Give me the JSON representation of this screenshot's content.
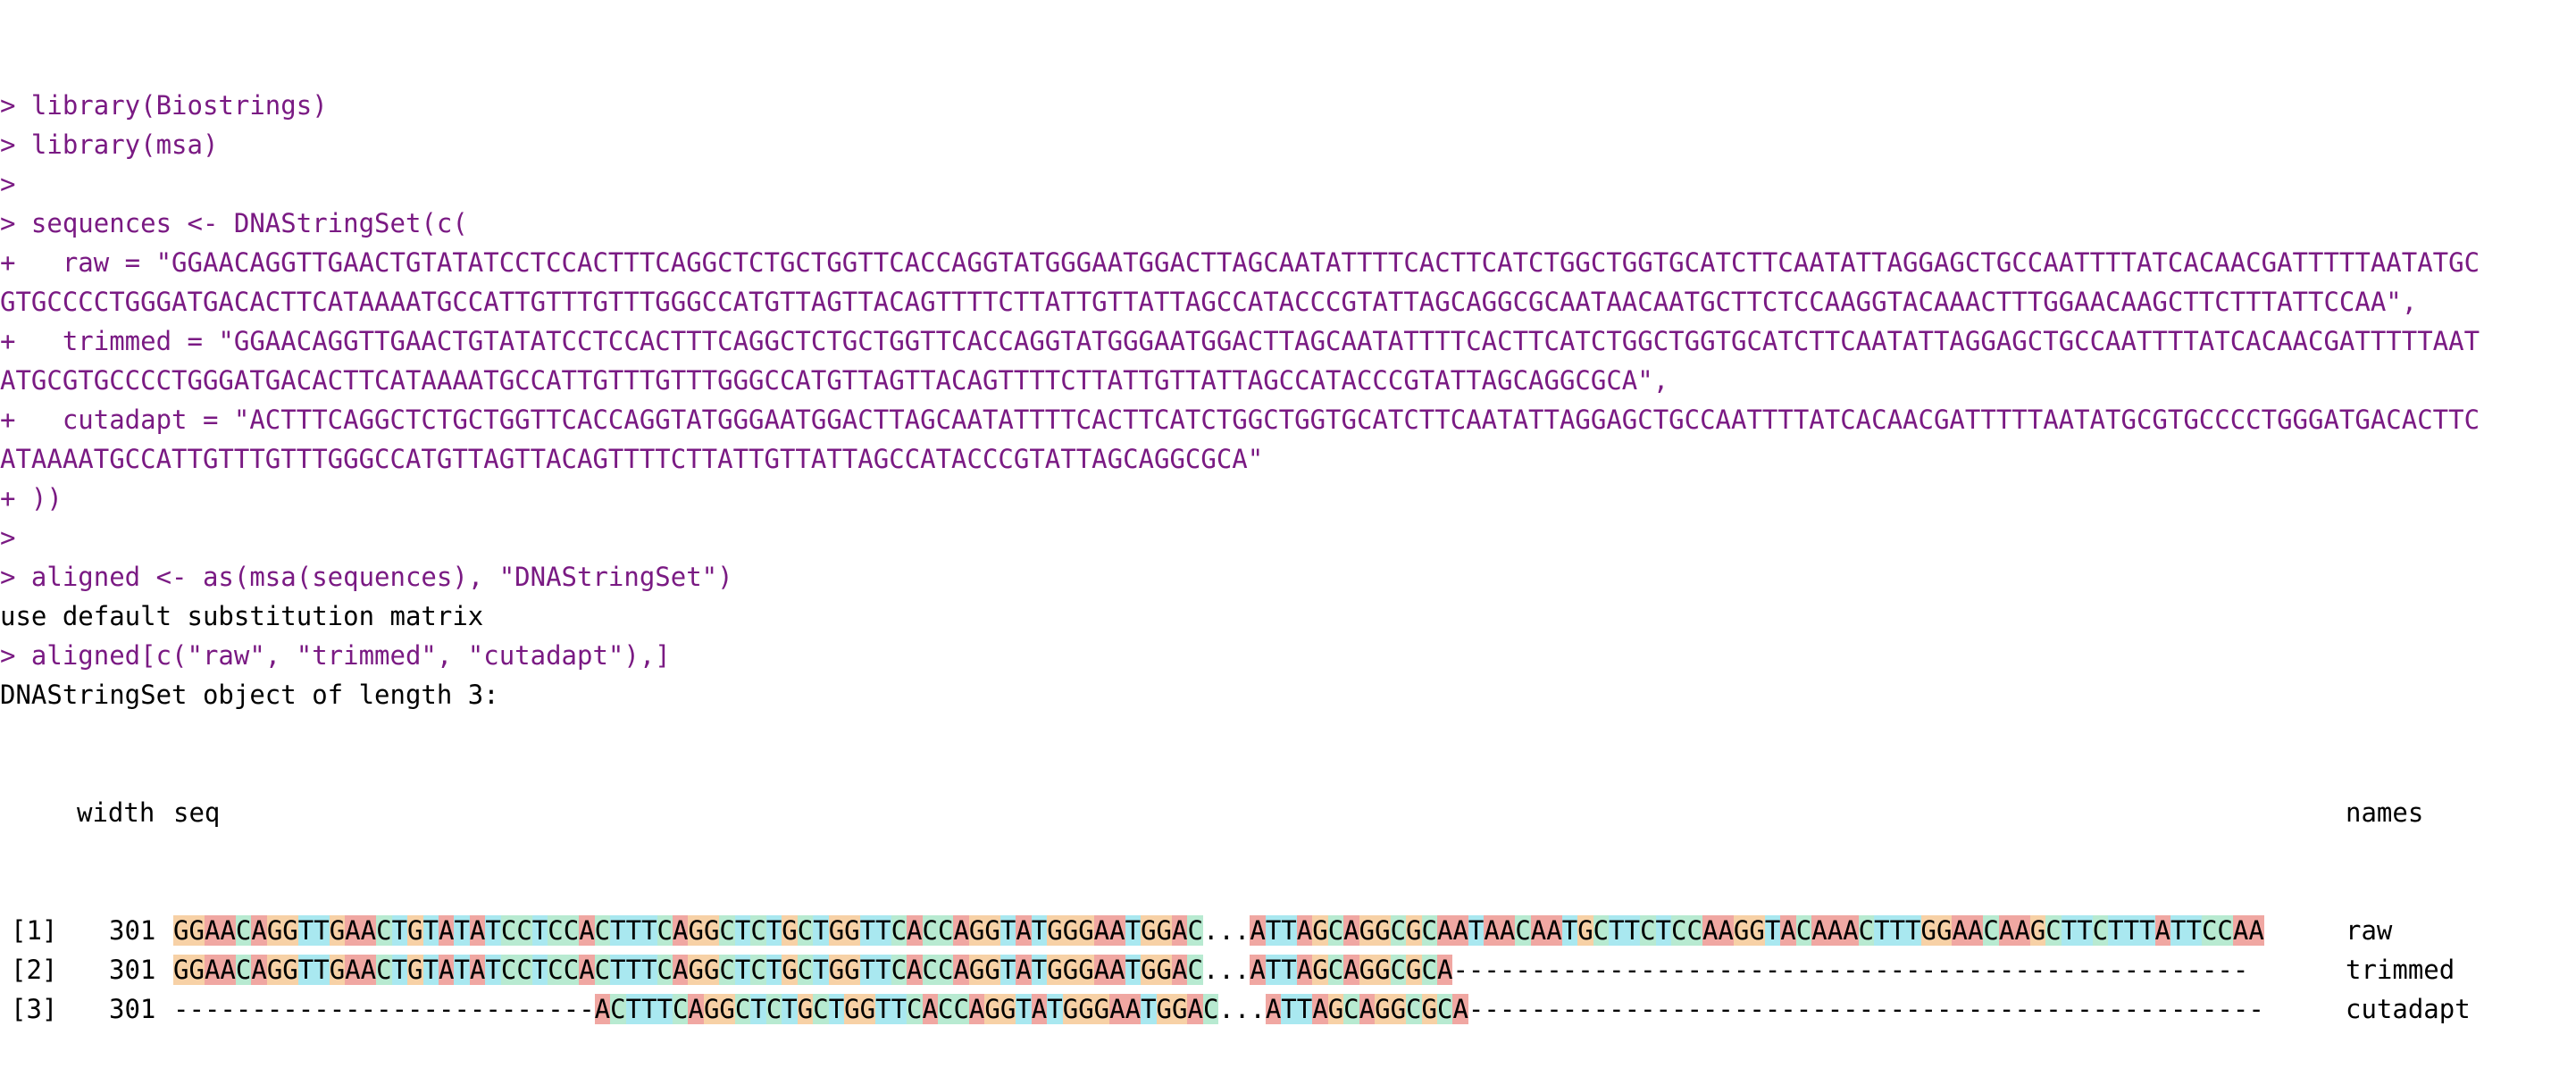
{
  "console": {
    "lines": [
      {
        "type": "in",
        "text": "> library(Biostrings)"
      },
      {
        "type": "in",
        "text": "> library(msa)"
      },
      {
        "type": "in",
        "text": ">"
      },
      {
        "type": "in",
        "text": "> sequences <- DNAStringSet(c("
      },
      {
        "type": "in",
        "text": "+   raw = \"GGAACAGGTTGAACTGTATATCCTCCACTTTCAGGCTCTGCTGGTTCACCAGGTATGGGAATGGACTTAGCAATATTTTCACTTCATCTGGCTGGTGCATCTTCAATATTAGGAGCTGCCAATTTTATCACAACGATTTTTAATATGC"
      },
      {
        "type": "in",
        "text": "GTGCCCCTGGGATGACACTTCATAAAATGCCATTGTTTGTTTGGGCCATGTTAGTTACAGTTTTCTTATTGTTATTAGCCATACCCGTATTAGCAGGCGCAATAACAATGCTTCTCCAAGGTACAAACTTTGGAACAAGCTTCTTTATTCCAA\","
      },
      {
        "type": "in",
        "text": "+   trimmed = \"GGAACAGGTTGAACTGTATATCCTCCACTTTCAGGCTCTGCTGGTTCACCAGGTATGGGAATGGACTTAGCAATATTTTCACTTCATCTGGCTGGTGCATCTTCAATATTAGGAGCTGCCAATTTTATCACAACGATTTTTAAT"
      },
      {
        "type": "in",
        "text": "ATGCGTGCCCCTGGGATGACACTTCATAAAATGCCATTGTTTGTTTGGGCCATGTTAGTTACAGTTTTCTTATTGTTATTAGCCATACCCGTATTAGCAGGCGCA\","
      },
      {
        "type": "in",
        "text": "+   cutadapt = \"ACTTTCAGGCTCTGCTGGTTCACCAGGTATGGGAATGGACTTAGCAATATTTTCACTTCATCTGGCTGGTGCATCTTCAATATTAGGAGCTGCCAATTTTATCACAACGATTTTTAATATGCGTGCCCCTGGGATGACACTTC"
      },
      {
        "type": "in",
        "text": "ATAAAATGCCATTGTTTGTTTGGGCCATGTTAGTTACAGTTTTCTTATTGTTATTAGCCATACCCGTATTAGCAGGCGCA\""
      },
      {
        "type": "in",
        "text": "+ ))"
      },
      {
        "type": "in",
        "text": ">"
      },
      {
        "type": "in",
        "text": "> aligned <- as(msa(sequences), \"DNAStringSet\")"
      },
      {
        "type": "out",
        "text": "use default substitution matrix"
      },
      {
        "type": "in",
        "text": "> aligned[c(\"raw\", \"trimmed\", \"cutadapt\"),]"
      },
      {
        "type": "out",
        "text": "DNAStringSet object of length 3:"
      }
    ]
  },
  "alignment": {
    "header": {
      "width": "width",
      "seq": "seq",
      "names": "names"
    },
    "rows": [
      {
        "index": "[1]",
        "width": "301",
        "seq": "GGAACAGGTTGAACTGTATATCCTCCACTTTCAGGCTCTGCTGGTTCACCAGGTATGGGAATGGAC...ATTAGCAGGCGCAATAACAATGCTTCTCCAAGGTACAAACTTTGGAACAAGCTTCTTTATTCCAA",
        "name": "raw"
      },
      {
        "index": "[2]",
        "width": "301",
        "seq": "GGAACAGGTTGAACTGTATATCCTCCACTTTCAGGCTCTGCTGGTTCACCAGGTATGGGAATGGAC...ATTAGCAGGCGCA---------------------------------------------------",
        "name": "trimmed"
      },
      {
        "index": "[3]",
        "width": "301",
        "seq": "---------------------------ACTTTCAGGCTCTGCTGGTTCACCAGGTATGGGAATGGAC...ATTAGCAGGCGCA---------------------------------------------------",
        "name": "cutadapt"
      }
    ]
  },
  "colors": {
    "input_text": "#7a1a83",
    "output_text": "#000000",
    "A": "#f0a7a2",
    "C": "#b8ead1",
    "G": "#f7d1a6",
    "T": "#a9e8f0"
  }
}
